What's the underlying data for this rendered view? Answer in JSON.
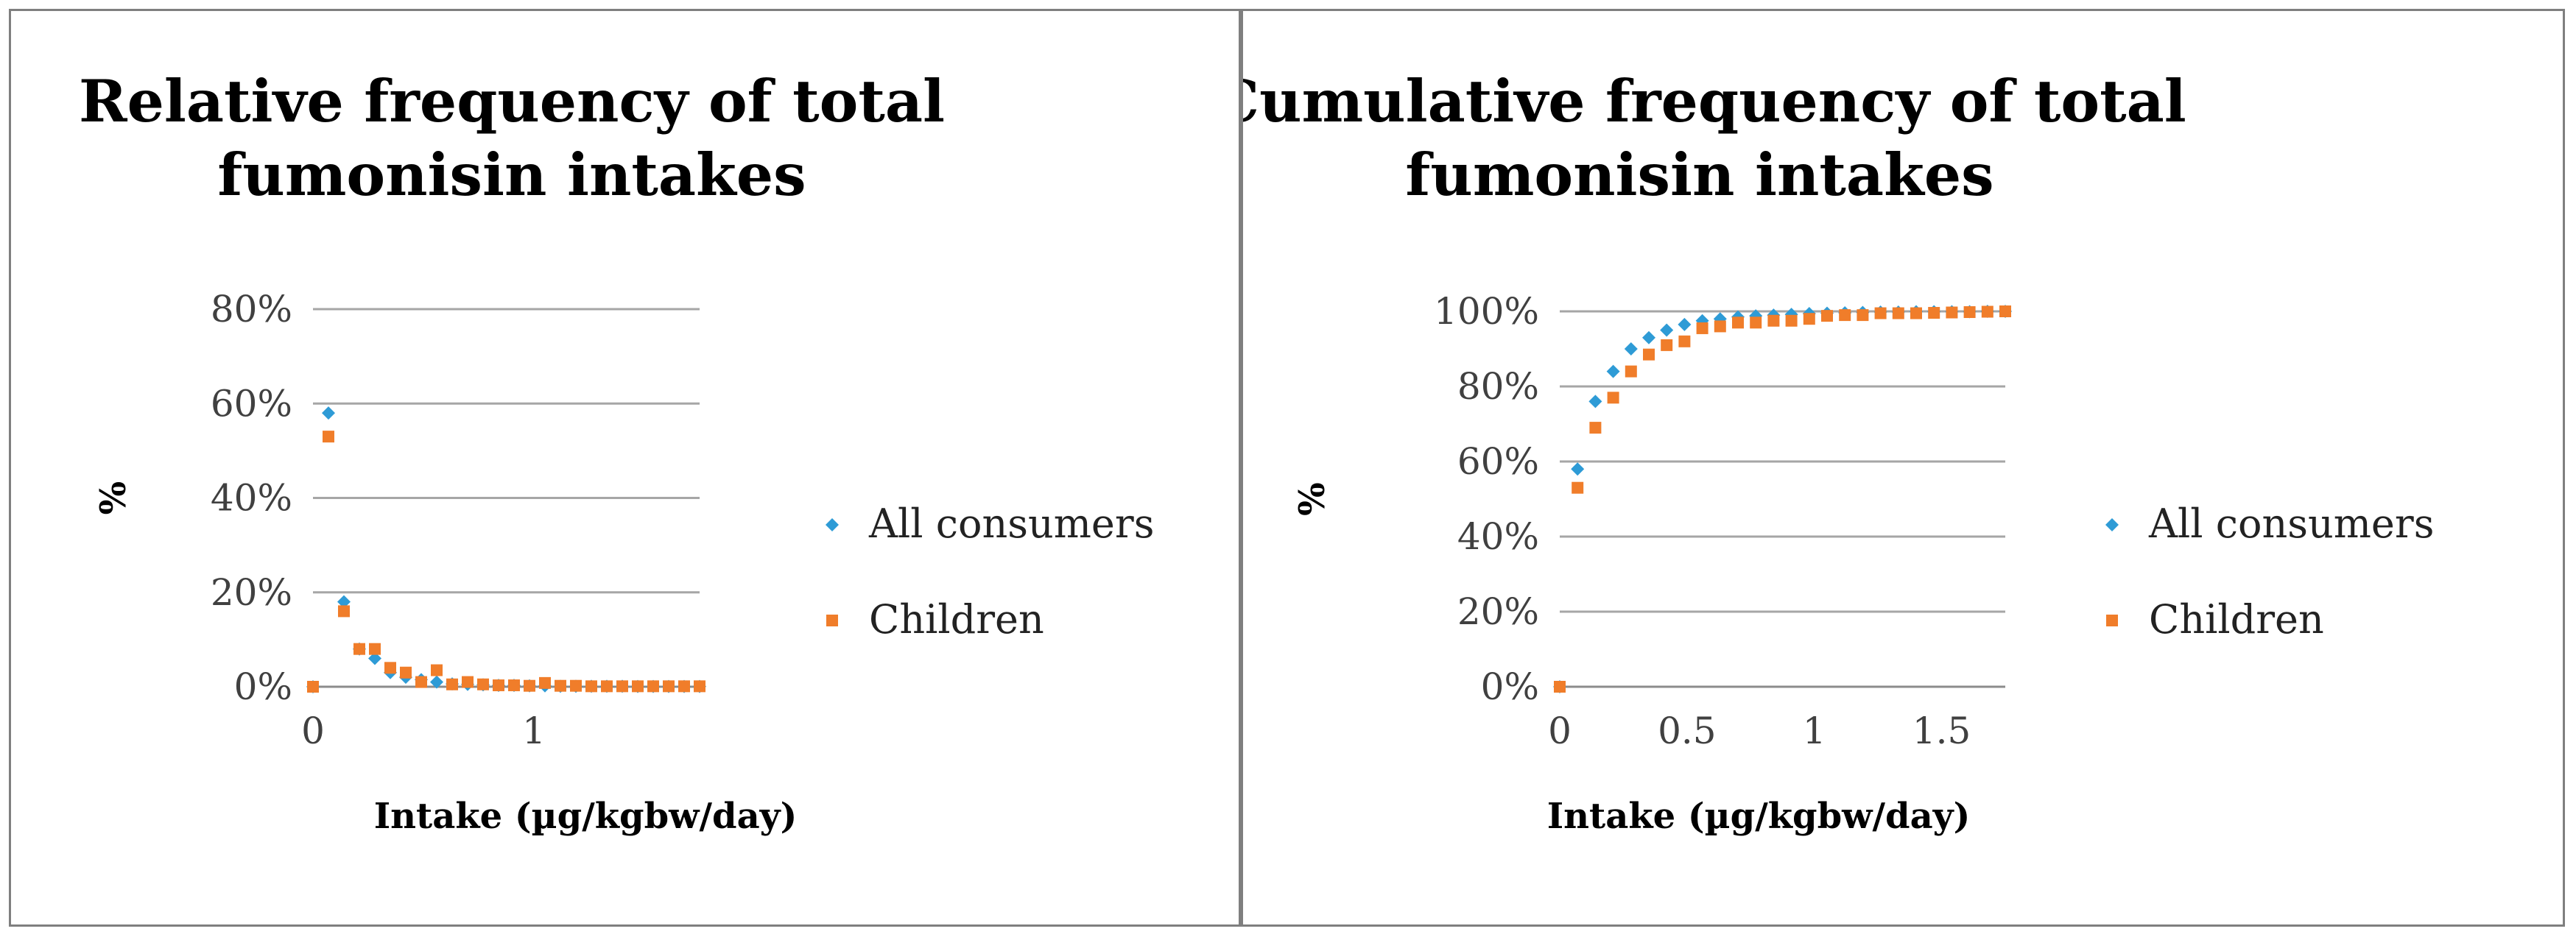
{
  "colors": {
    "all_consumers": "#2e9bd6",
    "children": "#f07d2a"
  },
  "chart_data": [
    {
      "type": "scatter",
      "title_lines": [
        "Relative frequency of total",
        "fumonisin intakes"
      ],
      "xlabel": "Intake (µg/kgbw/day)",
      "ylabel": "%",
      "xlim": [
        0,
        1.75
      ],
      "ylim": [
        0,
        80
      ],
      "x_ticks": [
        0,
        1
      ],
      "x_tick_labels": [
        "0",
        "1"
      ],
      "y_ticks": [
        0,
        20,
        40,
        60,
        80
      ],
      "y_tick_labels": [
        "0%",
        "20%",
        "40%",
        "60%",
        "80%"
      ],
      "legend": [
        "All consumers",
        "Children"
      ],
      "legend_position": "right",
      "series": [
        {
          "name": "All consumers",
          "marker": "diamond",
          "x": [
            0,
            0.07,
            0.14,
            0.21,
            0.28,
            0.35,
            0.42,
            0.49,
            0.56,
            0.63,
            0.7,
            0.77,
            0.84,
            0.91,
            0.98,
            1.05,
            1.12,
            1.19,
            1.26,
            1.33,
            1.4,
            1.47,
            1.54,
            1.61,
            1.68,
            1.75
          ],
          "y": [
            0,
            58,
            18,
            8,
            6,
            3,
            2,
            1.5,
            1,
            0.6,
            0.5,
            0.4,
            0.3,
            0.3,
            0.2,
            0.2,
            0.1,
            0.1,
            0.1,
            0.1,
            0.1,
            0.05,
            0.05,
            0.05,
            0.05,
            0.05
          ]
        },
        {
          "name": "Children",
          "marker": "square",
          "x": [
            0,
            0.07,
            0.14,
            0.21,
            0.28,
            0.35,
            0.42,
            0.49,
            0.56,
            0.63,
            0.7,
            0.77,
            0.84,
            0.91,
            0.98,
            1.05,
            1.12,
            1.19,
            1.26,
            1.33,
            1.4,
            1.47,
            1.54,
            1.61,
            1.68,
            1.75
          ],
          "y": [
            0,
            53,
            16,
            8,
            8,
            4,
            3,
            1,
            3.5,
            0.5,
            1,
            0.5,
            0.3,
            0.3,
            0.2,
            0.8,
            0.2,
            0.2,
            0.1,
            0.1,
            0.1,
            0.1,
            0.1,
            0.1,
            0.1,
            0.1
          ]
        }
      ]
    },
    {
      "type": "scatter",
      "title_lines": [
        "Cumulative frequency of total",
        "fumonisin intakes"
      ],
      "xlabel": "Intake (µg/kgbw/day)",
      "ylabel": "%",
      "xlim": [
        0,
        1.75
      ],
      "ylim": [
        0,
        100
      ],
      "x_ticks": [
        0,
        0.5,
        1,
        1.5
      ],
      "x_tick_labels": [
        "0",
        "0.5",
        "1",
        "1.5"
      ],
      "y_ticks": [
        0,
        20,
        40,
        60,
        80,
        100
      ],
      "y_tick_labels": [
        "0%",
        "20%",
        "40%",
        "60%",
        "80%",
        "100%"
      ],
      "legend": [
        "All consumers",
        "Children"
      ],
      "legend_position": "right",
      "series": [
        {
          "name": "All consumers",
          "marker": "diamond",
          "x": [
            0,
            0.07,
            0.14,
            0.21,
            0.28,
            0.35,
            0.42,
            0.49,
            0.56,
            0.63,
            0.7,
            0.77,
            0.84,
            0.91,
            0.98,
            1.05,
            1.12,
            1.19,
            1.26,
            1.33,
            1.4,
            1.47,
            1.54,
            1.61,
            1.68,
            1.75
          ],
          "y": [
            0,
            58,
            76,
            84,
            90,
            93,
            95,
            96.5,
            97.5,
            98,
            98.5,
            98.8,
            99,
            99.2,
            99.4,
            99.5,
            99.6,
            99.7,
            99.8,
            99.8,
            99.9,
            99.9,
            99.9,
            99.9,
            100,
            100
          ]
        },
        {
          "name": "Children",
          "marker": "square",
          "x": [
            0,
            0.07,
            0.14,
            0.21,
            0.28,
            0.35,
            0.42,
            0.49,
            0.56,
            0.63,
            0.7,
            0.77,
            0.84,
            0.91,
            0.98,
            1.05,
            1.12,
            1.19,
            1.26,
            1.33,
            1.4,
            1.47,
            1.54,
            1.61,
            1.68,
            1.75
          ],
          "y": [
            0,
            53,
            69,
            77,
            84,
            88.5,
            91,
            92,
            95.5,
            96,
            97,
            97,
            97.5,
            97.5,
            98,
            98.8,
            99,
            99,
            99.5,
            99.5,
            99.5,
            99.6,
            99.7,
            99.8,
            99.9,
            100
          ]
        }
      ]
    }
  ]
}
